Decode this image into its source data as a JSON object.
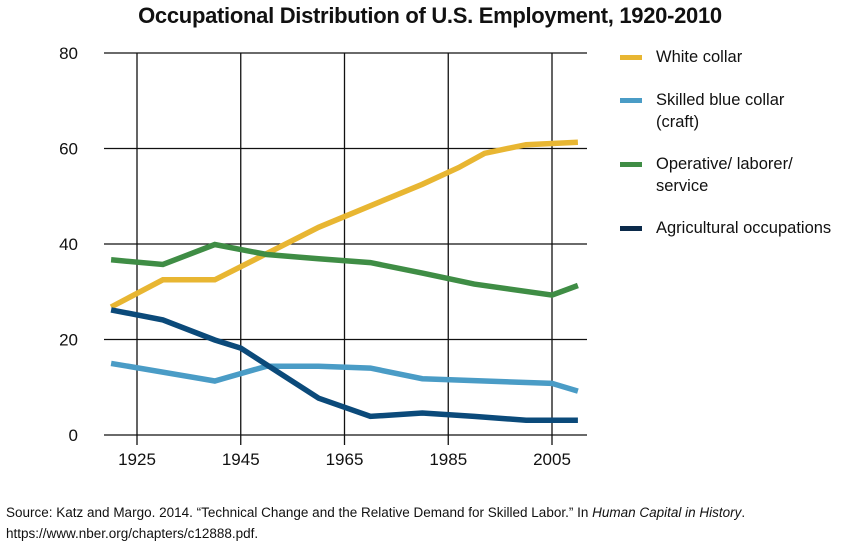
{
  "chart_data": {
    "type": "line",
    "title": "Occupational Distribution of U.S. Employment, 1920-2010",
    "xlabel": "",
    "ylabel": "",
    "xlim": [
      1918.6,
      2012
    ],
    "ylim": [
      0,
      80
    ],
    "grid": true,
    "x_ticks": [
      1925,
      1945,
      1965,
      1985,
      2005
    ],
    "y_ticks": [
      0,
      20,
      40,
      60,
      80
    ],
    "legend_position": "right",
    "series": [
      {
        "name": "White collar",
        "color": "#E8B632",
        "points": [
          [
            1920,
            26.8
          ],
          [
            1930,
            32.5
          ],
          [
            1940,
            32.5
          ],
          [
            1950,
            38.0
          ],
          [
            1960,
            43.5
          ],
          [
            1970,
            48.0
          ],
          [
            1980,
            52.5
          ],
          [
            1987,
            56.0
          ],
          [
            1992,
            59.0
          ],
          [
            2000,
            60.8
          ],
          [
            2010,
            61.3
          ]
        ]
      },
      {
        "name": "Skilled blue collar (craft)",
        "color": "#4A9CC6",
        "points": [
          [
            1920,
            15.0
          ],
          [
            1940,
            11.3
          ],
          [
            1950,
            14.4
          ],
          [
            1960,
            14.4
          ],
          [
            1970,
            14.0
          ],
          [
            1980,
            11.8
          ],
          [
            1990,
            11.4
          ],
          [
            2005,
            10.8
          ],
          [
            2010,
            9.2
          ]
        ]
      },
      {
        "name": "Operative/ laborer/ service",
        "color": "#3F8D45",
        "points": [
          [
            1920,
            36.7
          ],
          [
            1930,
            35.7
          ],
          [
            1940,
            39.9
          ],
          [
            1950,
            37.8
          ],
          [
            1960,
            36.9
          ],
          [
            1970,
            36.1
          ],
          [
            1980,
            33.9
          ],
          [
            1990,
            31.6
          ],
          [
            2005,
            29.3
          ],
          [
            2010,
            31.3
          ]
        ]
      },
      {
        "name": "Agricultural occupations",
        "color": "#0B4A7A",
        "points": [
          [
            1920,
            26.2
          ],
          [
            1930,
            24.1
          ],
          [
            1940,
            19.9
          ],
          [
            1945,
            18.2
          ],
          [
            1960,
            7.7
          ],
          [
            1970,
            3.9
          ],
          [
            1980,
            4.6
          ],
          [
            1990,
            3.9
          ],
          [
            2000,
            3.1
          ],
          [
            2010,
            3.1
          ]
        ]
      }
    ]
  },
  "legend": [
    {
      "label": "White collar",
      "color": "#E8B632"
    },
    {
      "label": "Skilled blue collar (craft)",
      "color": "#4A9CC6"
    },
    {
      "label": "Operative/ laborer/ service",
      "color": "#3F8D45"
    },
    {
      "label": "Agricultural occupations",
      "color": "#0B2A4A"
    }
  ],
  "source": {
    "prefix": "Source: Katz and Margo. 2014. “Technical Change and the Relative Demand for Skilled Labor.” In ",
    "book": "Human Capital in History",
    "suffix": ".",
    "url": "https://www.nber.org/chapters/c12888.pdf."
  }
}
